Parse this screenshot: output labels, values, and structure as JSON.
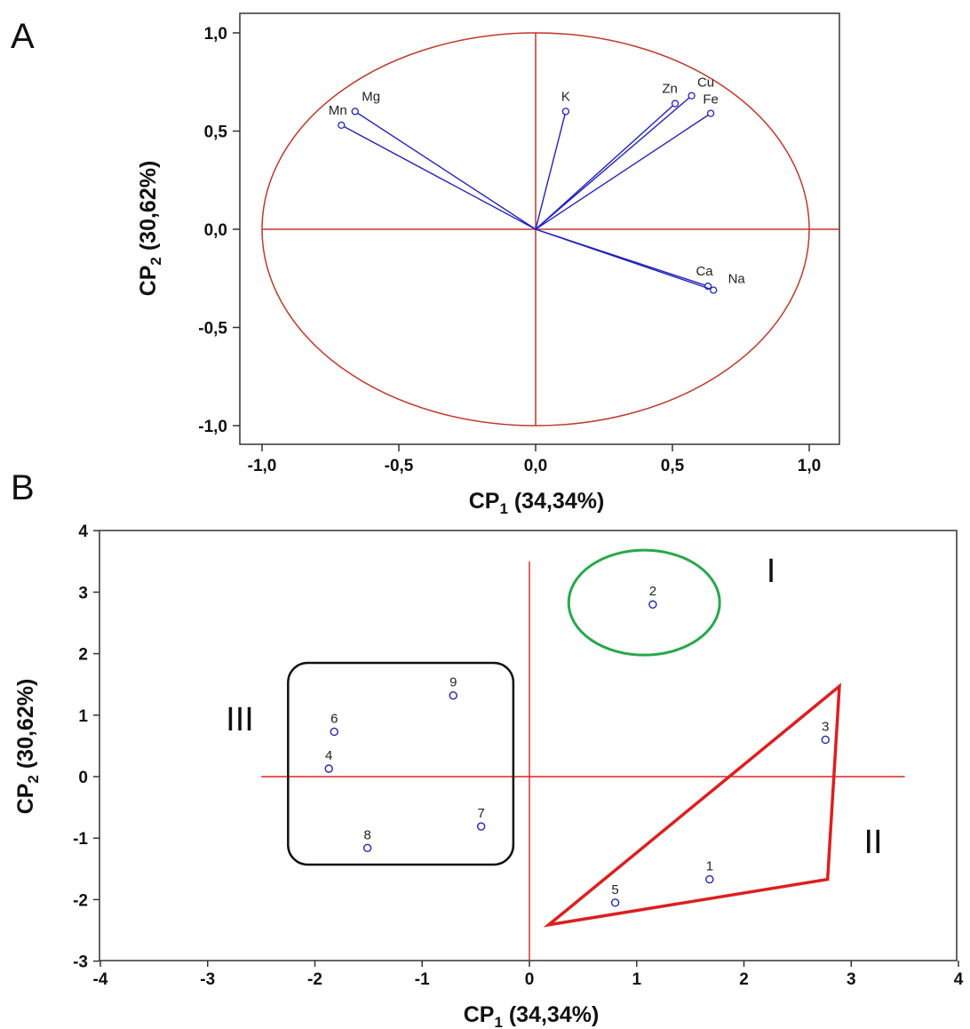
{
  "panels": {
    "a": "A",
    "b": "B"
  },
  "colors": {
    "circle": "#c0392b",
    "vector": "#2222bb",
    "marker": "#2222bb",
    "groupI": "#27a84a",
    "groupII": "#dd1f1f",
    "groupIII": "#111111",
    "axisline": "#dd2222"
  },
  "chart_data": [
    {
      "type": "scatter",
      "title": "",
      "xlabel": "CP1 (34,34%)",
      "ylabel": "CP2 (30,62%)",
      "xlabel_parts": {
        "main": "CP",
        "sub": "1",
        "rest": " (34,34%)"
      },
      "ylabel_parts": {
        "main": "CP",
        "sub": "2",
        "rest": " (30,62%)"
      },
      "xlim": [
        -1.05,
        1.05
      ],
      "ylim": [
        -1.05,
        1.05
      ],
      "xticks": [
        -1.0,
        -0.5,
        0.0,
        0.5,
        1.0
      ],
      "xtick_labels": [
        "-1,0",
        "-0,5",
        "0,0",
        "0,5",
        "1,0"
      ],
      "yticks": [
        1.0,
        0.5,
        0.0,
        -0.5,
        -1.0
      ],
      "ytick_labels": [
        "1,0",
        "0,5",
        "0,0",
        "-0,5",
        "-1,0"
      ],
      "unit_circle": true,
      "vectors": [
        {
          "label": "Mg",
          "x": -0.66,
          "y": 0.6
        },
        {
          "label": "Mn",
          "x": -0.71,
          "y": 0.53
        },
        {
          "label": "K",
          "x": 0.11,
          "y": 0.6
        },
        {
          "label": "Zn",
          "x": 0.51,
          "y": 0.64
        },
        {
          "label": "Cu",
          "x": 0.57,
          "y": 0.68
        },
        {
          "label": "Fe",
          "x": 0.64,
          "y": 0.59
        },
        {
          "label": "Ca",
          "x": 0.63,
          "y": -0.29
        },
        {
          "label": "Na",
          "x": 0.65,
          "y": -0.31
        }
      ]
    },
    {
      "type": "scatter",
      "title": "",
      "xlabel": "CP1 (34,34%)",
      "ylabel": "CP2 (30,62%)",
      "xlabel_parts": {
        "main": "CP",
        "sub": "1",
        "rest": " (34,34%)"
      },
      "ylabel_parts": {
        "main": "CP",
        "sub": "2",
        "rest": " (30,62%)"
      },
      "xlim": [
        -4,
        4
      ],
      "ylim": [
        -3,
        4
      ],
      "xticks": [
        -4,
        -3,
        -2,
        -1,
        0,
        1,
        2,
        3,
        4
      ],
      "xtick_labels": [
        "-4",
        "-3",
        "-2",
        "-1",
        "0",
        "1",
        "2",
        "3",
        "4"
      ],
      "yticks": [
        4,
        3,
        2,
        1,
        0,
        -1,
        -2,
        -3
      ],
      "ytick_labels": [
        "4",
        "3",
        "2",
        "1",
        "0",
        "-1",
        "-2",
        "-3"
      ],
      "points": [
        {
          "label": "1",
          "x": 1.68,
          "y": -1.67
        },
        {
          "label": "2",
          "x": 1.15,
          "y": 2.8
        },
        {
          "label": "3",
          "x": 2.76,
          "y": 0.6
        },
        {
          "label": "4",
          "x": -1.87,
          "y": 0.13
        },
        {
          "label": "5",
          "x": 0.8,
          "y": -2.05
        },
        {
          "label": "6",
          "x": -1.82,
          "y": 0.73
        },
        {
          "label": "7",
          "x": -0.45,
          "y": -0.81
        },
        {
          "label": "8",
          "x": -1.51,
          "y": -1.16
        },
        {
          "label": "9",
          "x": -0.71,
          "y": 1.32
        }
      ],
      "groups": [
        {
          "label": "I",
          "shape": "circle",
          "members": [
            "2"
          ]
        },
        {
          "label": "II",
          "shape": "triangle",
          "members": [
            "1",
            "3",
            "5"
          ]
        },
        {
          "label": "III",
          "shape": "rounded-rect",
          "members": [
            "4",
            "6",
            "7",
            "8",
            "9"
          ]
        }
      ]
    }
  ]
}
